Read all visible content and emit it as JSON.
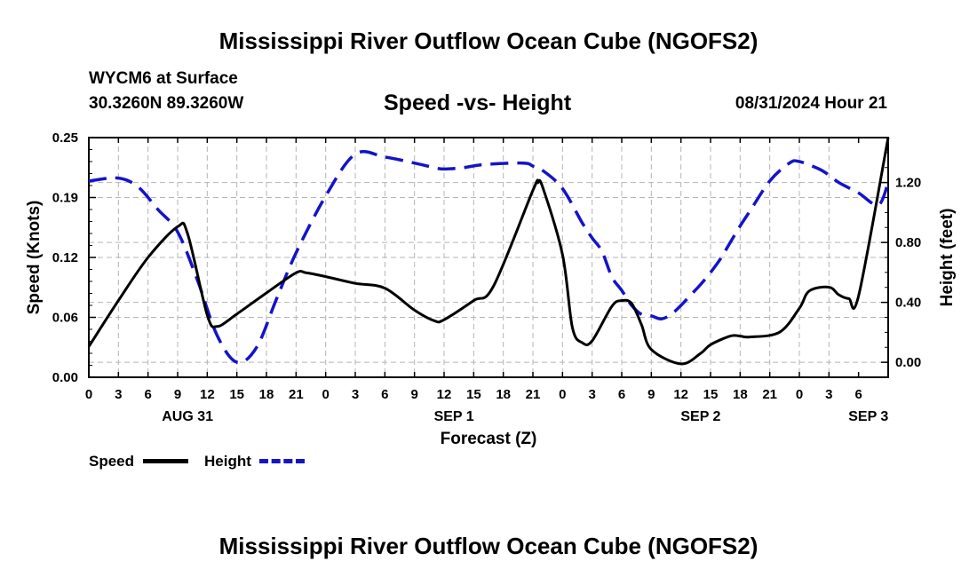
{
  "header": {
    "title": "Mississippi River Outflow Ocean Cube (NGOFS2)",
    "station": "WYCM6 at Surface",
    "coords": "30.3260N  89.3260W",
    "subtitle": "Speed -vs- Height",
    "datetime": "08/31/2024 Hour 21"
  },
  "footer": {
    "title": "Mississippi River Outflow Ocean Cube (NGOFS2)"
  },
  "legend": {
    "speed_label": "Speed",
    "height_label": "Height"
  },
  "colors": {
    "speed": "#000000",
    "height": "#1414c8",
    "grid": "#b4b4b4"
  },
  "chart_data": {
    "type": "line",
    "title": "Speed -vs- Height",
    "xlabel": "Forecast (Z)",
    "ylabel_left": "Speed (Knots)",
    "ylabel_right": "Height (feet)",
    "x_hours_range": [
      0,
      81
    ],
    "y_left_range": [
      0,
      0.25
    ],
    "y_right_range": [
      -0.1,
      1.5
    ],
    "x_ticks": [
      "0",
      "3",
      "6",
      "9",
      "12",
      "15",
      "18",
      "21",
      "0",
      "3",
      "6",
      "9",
      "12",
      "15",
      "18",
      "21",
      "0",
      "3",
      "6",
      "9",
      "12",
      "15",
      "18",
      "21",
      "0",
      "3",
      "6"
    ],
    "y_left_ticks": [
      "0.00",
      "0.06",
      "0.12",
      "0.19",
      "0.25"
    ],
    "y_right_ticks": [
      "0.00",
      "0.40",
      "0.80",
      "1.20"
    ],
    "day_labels": [
      {
        "label": "AUG 31",
        "hour": 10
      },
      {
        "label": "SEP 1",
        "hour": 37
      },
      {
        "label": "SEP 2",
        "hour": 62
      },
      {
        "label": "SEP 3",
        "hour": 79
      }
    ],
    "grid": true,
    "series": [
      {
        "name": "Speed",
        "axis": "left",
        "hours": [
          0,
          3,
          6,
          9,
          10,
          12,
          13,
          15,
          18,
          21,
          22,
          24,
          27,
          30,
          33,
          35,
          36,
          39,
          41,
          45,
          45.5,
          46,
          48,
          49,
          50,
          51,
          53,
          54,
          55,
          56,
          57,
          60,
          62,
          63,
          65,
          66,
          67,
          70,
          72,
          73,
          75,
          76,
          77,
          78,
          81
        ],
        "values": [
          0.032,
          0.08,
          0.125,
          0.157,
          0.15,
          0.065,
          0.053,
          0.066,
          0.088,
          0.109,
          0.109,
          0.105,
          0.098,
          0.093,
          0.07,
          0.059,
          0.06,
          0.08,
          0.095,
          0.195,
          0.203,
          0.198,
          0.128,
          0.052,
          0.036,
          0.038,
          0.074,
          0.08,
          0.077,
          0.055,
          0.029,
          0.014,
          0.025,
          0.034,
          0.043,
          0.043,
          0.042,
          0.047,
          0.072,
          0.09,
          0.094,
          0.086,
          0.082,
          0.085,
          0.25
        ]
      },
      {
        "name": "Height",
        "axis": "right",
        "hours": [
          0,
          3,
          5,
          7,
          9,
          11,
          13,
          15,
          17,
          19,
          21,
          24,
          27,
          30,
          33,
          35,
          36,
          38,
          40,
          44,
          45,
          46,
          48,
          50,
          51,
          52,
          53,
          54,
          55,
          56,
          57,
          58,
          59,
          60,
          61,
          62,
          63,
          64,
          65,
          66,
          67,
          69,
          71,
          72,
          74,
          75,
          76,
          78,
          80,
          81
        ],
        "values": [
          1.21,
          1.23,
          1.17,
          1.02,
          0.87,
          0.55,
          0.18,
          0.0,
          0.1,
          0.42,
          0.73,
          1.11,
          1.39,
          1.37,
          1.33,
          1.3,
          1.29,
          1.3,
          1.32,
          1.33,
          1.31,
          1.28,
          1.16,
          0.93,
          0.83,
          0.74,
          0.57,
          0.48,
          0.38,
          0.32,
          0.31,
          0.29,
          0.32,
          0.38,
          0.45,
          0.52,
          0.6,
          0.69,
          0.8,
          0.91,
          1.01,
          1.21,
          1.33,
          1.34,
          1.29,
          1.25,
          1.2,
          1.13,
          1.05,
          1.2
        ]
      }
    ]
  }
}
